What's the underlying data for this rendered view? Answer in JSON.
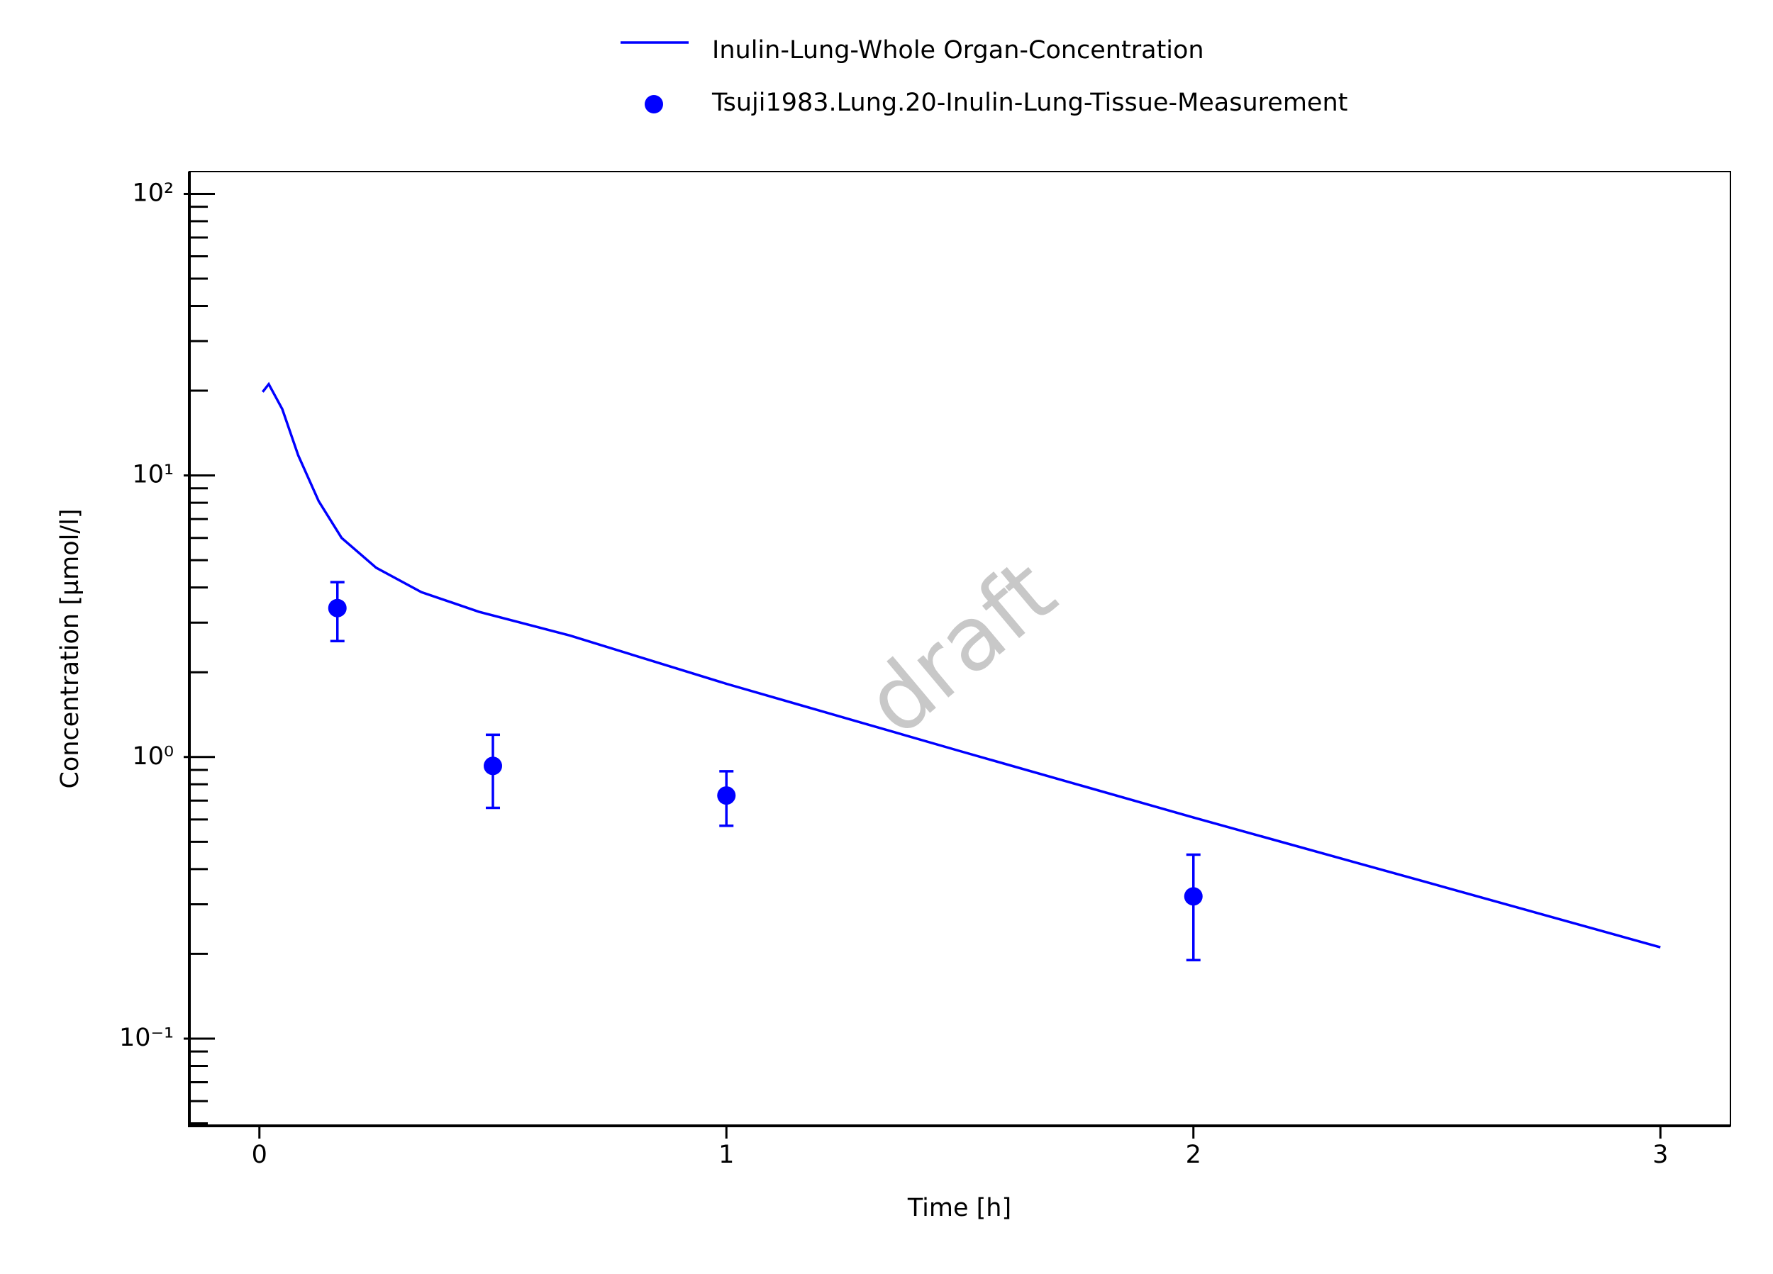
{
  "chart_data": {
    "type": "line",
    "xlabel": "Time [h]",
    "ylabel": "Concentration [µmol/l]",
    "watermark": "draft",
    "xlim": [
      -0.15,
      3.15
    ],
    "xticks": [
      0,
      1,
      2,
      3
    ],
    "ylim": [
      0.049,
      120
    ],
    "yscale": "log",
    "yticks": [
      {
        "value": 0.1,
        "label": "10⁻¹"
      },
      {
        "value": 1,
        "label": "10⁰"
      },
      {
        "value": 10,
        "label": "10¹"
      },
      {
        "value": 100,
        "label": "10²"
      }
    ],
    "yminorticks": [
      0.05,
      0.06,
      0.07,
      0.08,
      0.09,
      0.2,
      0.3,
      0.4,
      0.5,
      0.6,
      0.7,
      0.8,
      0.9,
      2,
      3,
      4,
      5,
      6,
      7,
      8,
      9,
      20,
      30,
      40,
      50,
      60,
      70,
      80,
      90
    ],
    "grid": false,
    "legend": "top",
    "series": [
      {
        "name": "Inulin-Lung-Whole Organ-Concentration",
        "color": "#0000ff",
        "x": [
          0.007,
          0.02,
          0.049,
          0.083,
          0.127,
          0.176,
          0.25,
          0.347,
          0.47,
          0.665,
          1.0,
          1.5,
          2.0,
          2.5,
          3.0
        ],
        "values": [
          19.8,
          21.1,
          17.2,
          11.8,
          8.1,
          6.0,
          4.7,
          3.85,
          3.28,
          2.7,
          1.82,
          1.05,
          0.61,
          0.359,
          0.211
        ]
      },
      {
        "name": "Tsuji1983.Lung.20-Inulin-Lung-Tissue-Measurement",
        "color": "#0000ff",
        "marker": "circle",
        "x": [
          0.167,
          0.5,
          1.0,
          2.0
        ],
        "values": [
          3.38,
          0.93,
          0.73,
          0.32
        ],
        "errors": [
          0.8,
          0.27,
          0.16,
          0.13
        ]
      }
    ]
  }
}
